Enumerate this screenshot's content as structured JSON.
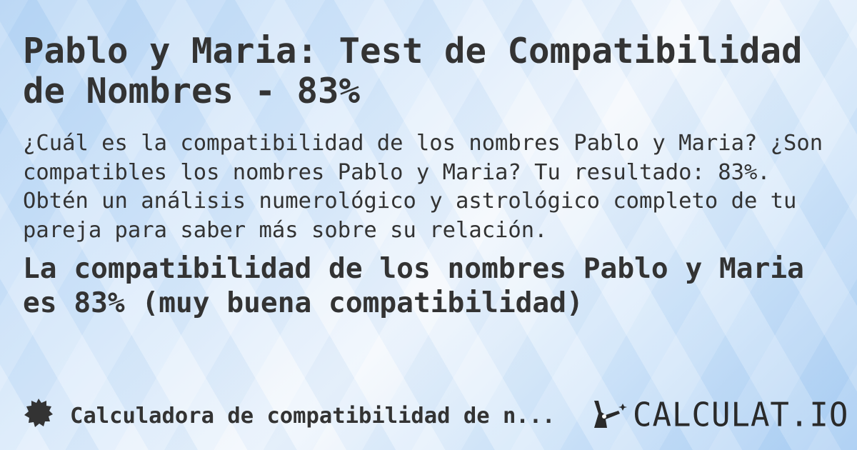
{
  "title": "Pablo y Maria: Test de Compatibilidad de Nombres - 83%",
  "description": "¿Cuál es la compatibilidad de los nombres Pablo y Maria? ¿Son compatibles los nombres Pablo y Maria? Tu resultado: 83%. Obtén un análisis numerológico y astrológico completo de tu pareja para saber más sobre su relación.",
  "result": "La compatibilidad de los nombres Pablo y Maria es 83% (muy buena compatibilidad)",
  "footer": {
    "icon": "badge-icon",
    "link_label": "Calculadora de compatibilidad de n...",
    "logo_text": "CALCULAT.IO",
    "logo_icon": "hand-wand-icon"
  }
}
